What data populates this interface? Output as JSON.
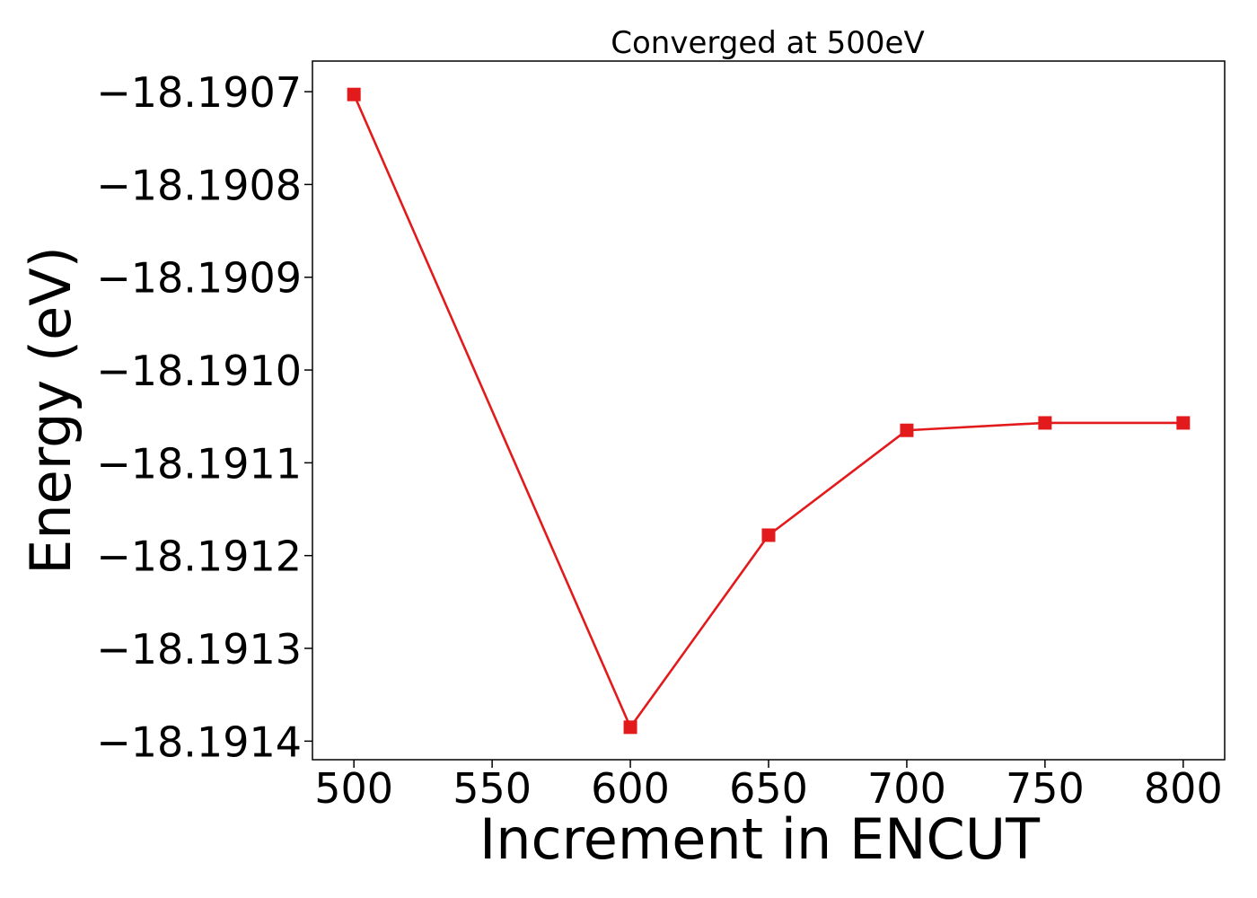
{
  "chart_data": {
    "type": "line",
    "title": "Converged at 500eV",
    "xlabel": "Increment in ENCUT",
    "ylabel": "Energy (eV)",
    "x": [
      500,
      600,
      650,
      700,
      750,
      800
    ],
    "series": [
      {
        "values": [
          -18.190703,
          -18.191385,
          -18.191178,
          -18.191065,
          -18.191057,
          -18.191057
        ],
        "color": "#e31a1c",
        "marker": "square"
      }
    ],
    "xticks": [
      500,
      550,
      600,
      650,
      700,
      750,
      800
    ],
    "xtick_labels": [
      "500",
      "550",
      "600",
      "650",
      "700",
      "750",
      "800"
    ],
    "yticks": [
      -18.1907,
      -18.1908,
      -18.1909,
      -18.191,
      -18.1911,
      -18.1912,
      -18.1913,
      -18.1914
    ],
    "ytick_labels": [
      "−18.1907",
      "−18.1908",
      "−18.1909",
      "−18.1910",
      "−18.1911",
      "−18.1912",
      "−18.1913",
      "−18.1914"
    ],
    "xlim": [
      485,
      815
    ],
    "ylim": [
      -18.19142,
      -18.190667
    ],
    "grid": false,
    "legend": false
  }
}
